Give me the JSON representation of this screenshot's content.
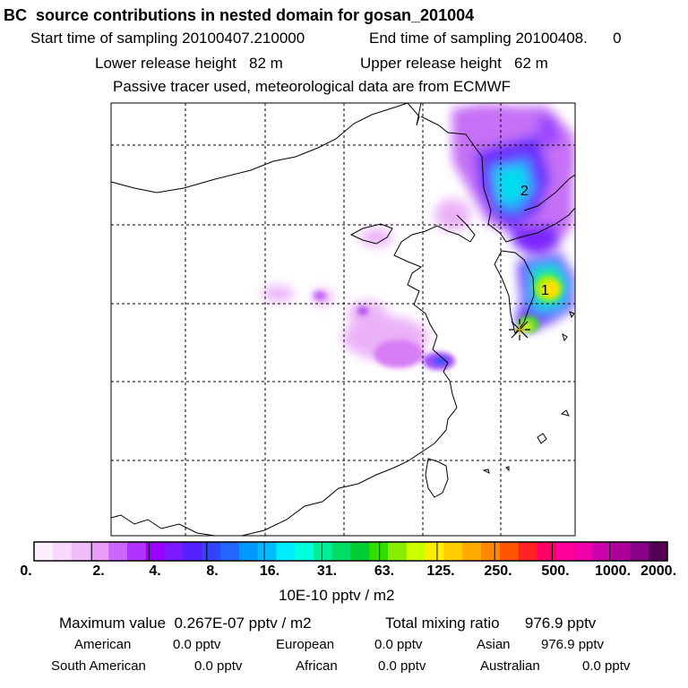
{
  "header": {
    "title": "BC  source contributions in nested domain for gosan_201004",
    "start_label": "Start time of sampling 20100407.210000",
    "end_label": "End time of sampling 20100408.      0",
    "lower_release": "Lower release height   82 m",
    "upper_release": "Upper release height   62 m",
    "tracer_note": "Passive tracer used, meteorological data are from ECMWF"
  },
  "map": {
    "contour_labels": [
      "1",
      "2"
    ],
    "receptor_marker": "star-icon"
  },
  "colorbar": {
    "colors": [
      "#fdf0fe",
      "#f8d9fd",
      "#f2bdfb",
      "#ea9df8",
      "#cc66ff",
      "#b233ff",
      "#9900ff",
      "#7a1aff",
      "#5522ff",
      "#3344ff",
      "#2266ff",
      "#0099ff",
      "#00bbff",
      "#00eeff",
      "#00ffdd",
      "#00ee99",
      "#00dd66",
      "#00cc33",
      "#33dd00",
      "#88ee00",
      "#ccff00",
      "#ffee00",
      "#ffcc00",
      "#ffaa00",
      "#ff8800",
      "#ff5500",
      "#ff2222",
      "#ff0066",
      "#ff0099",
      "#ee00aa",
      "#cc00aa",
      "#aa0099",
      "#880088",
      "#550055"
    ],
    "tick_labels": [
      "0.",
      "2.",
      "4.",
      "8.",
      "16.",
      "31.",
      "63.",
      "125.",
      "250.",
      "500.",
      "1000.",
      "2000."
    ],
    "unit": "10E-10 pptv / m2"
  },
  "summary": {
    "max_value": "Maximum value  0.267E-07 pptv / m2",
    "total_mixing": "Total mixing ratio      976.9 pptv",
    "regions": [
      {
        "name": "American",
        "value": "0.0 pptv"
      },
      {
        "name": "European",
        "value": "0.0 pptv"
      },
      {
        "name": "Asian",
        "value": "976.9 pptv"
      },
      {
        "name": "South American",
        "value": "0.0 pptv"
      },
      {
        "name": "African",
        "value": "0.0 pptv"
      },
      {
        "name": "Australian",
        "value": "0.0 pptv"
      }
    ]
  }
}
